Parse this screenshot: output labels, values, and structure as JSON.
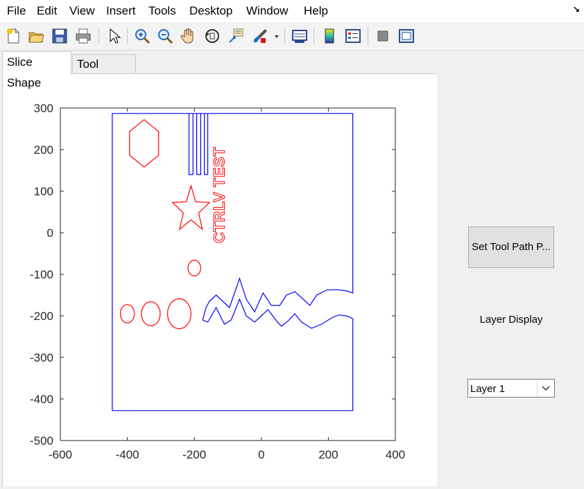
{
  "menubar": {
    "items": [
      "File",
      "Edit",
      "View",
      "Insert",
      "Tools",
      "Desktop",
      "Window",
      "Help"
    ]
  },
  "toolbar": {
    "icons": [
      "new-file-icon",
      "open-folder-icon",
      "save-icon",
      "print-icon",
      "pointer-icon",
      "zoom-in-icon",
      "zoom-out-icon",
      "pan-hand-icon",
      "rotate-3d-icon",
      "data-cursor-icon",
      "brush-icon",
      "brush-dropdown-icon",
      "link-plot-icon",
      "colorbar-icon",
      "legend-icon",
      "hide-plot-tools-icon",
      "show-plot-tools-icon"
    ]
  },
  "tabs": [
    {
      "label": "Slice Shape",
      "active": true
    },
    {
      "label": "Tool Paths",
      "active": false
    }
  ],
  "controls": {
    "set_tool_path_button": "Set Tool Path P...",
    "layer_display_label": "Layer Display",
    "layer_select": {
      "value": "Layer 1"
    }
  },
  "colors": {
    "outline": "#0000ff",
    "shapes": "#ff0000",
    "window_bg": "#f0f0f0"
  },
  "chart_data": {
    "type": "line",
    "xlim": [
      -600,
      400
    ],
    "ylim": [
      -500,
      300
    ],
    "xticks": [
      -600,
      -400,
      -200,
      0,
      200,
      400
    ],
    "yticks": [
      300,
      200,
      100,
      0,
      -100,
      -200,
      -300,
      -400,
      -500
    ],
    "grid": false,
    "embedded_text": "CTRLV TEST",
    "series": [
      {
        "color": "#0000ff",
        "outline": [
          [
            -445,
            287
          ],
          [
            -445,
            -428
          ],
          [
            273,
            -428
          ],
          [
            273,
            -207
          ],
          [
            255,
            -200
          ],
          [
            230,
            -198
          ],
          [
            210,
            -205
          ],
          [
            180,
            -220
          ],
          [
            150,
            -230
          ],
          [
            120,
            -215
          ],
          [
            100,
            -195
          ],
          [
            80,
            -212
          ],
          [
            60,
            -225
          ],
          [
            45,
            -212
          ],
          [
            20,
            -185
          ],
          [
            0,
            -200
          ],
          [
            -20,
            -215
          ],
          [
            -45,
            -200
          ],
          [
            -65,
            -160
          ],
          [
            -90,
            -210
          ],
          [
            -110,
            -220
          ],
          [
            -135,
            -180
          ],
          [
            -160,
            -215
          ],
          [
            -175,
            -210
          ],
          [
            -165,
            -180
          ],
          [
            -155,
            -165
          ],
          [
            -135,
            -150
          ],
          [
            -115,
            -165
          ],
          [
            -95,
            -180
          ],
          [
            -65,
            -110
          ],
          [
            -45,
            -160
          ],
          [
            -20,
            -190
          ],
          [
            5,
            -145
          ],
          [
            30,
            -175
          ],
          [
            55,
            -175
          ],
          [
            75,
            -150
          ],
          [
            100,
            -142
          ],
          [
            125,
            -160
          ],
          [
            145,
            -175
          ],
          [
            165,
            -150
          ],
          [
            195,
            -138
          ],
          [
            225,
            -137
          ],
          [
            255,
            -140
          ],
          [
            273,
            -145
          ],
          [
            273,
            287
          ],
          [
            -445,
            287
          ]
        ],
        "stripes_x": [
          -216,
          -204,
          -193,
          -181,
          -170,
          -160
        ],
        "stripes_y": [
          140,
          287
        ]
      },
      {
        "color": "#ff0000",
        "hexagon": {
          "cx": -350,
          "cy": 215,
          "rx": 50,
          "ry": 57
        },
        "star": {
          "cx": -210,
          "cy": 55,
          "r_outer": 58,
          "r_inner": 24
        },
        "ellipses": [
          {
            "cx": -200,
            "cy": -85,
            "rx": 19,
            "ry": 19
          },
          {
            "cx": -400,
            "cy": -195,
            "rx": 21,
            "ry": 22
          },
          {
            "cx": -330,
            "cy": -195,
            "rx": 28,
            "ry": 29
          },
          {
            "cx": -245,
            "cy": -195,
            "rx": 35,
            "ry": 36
          }
        ]
      }
    ]
  }
}
